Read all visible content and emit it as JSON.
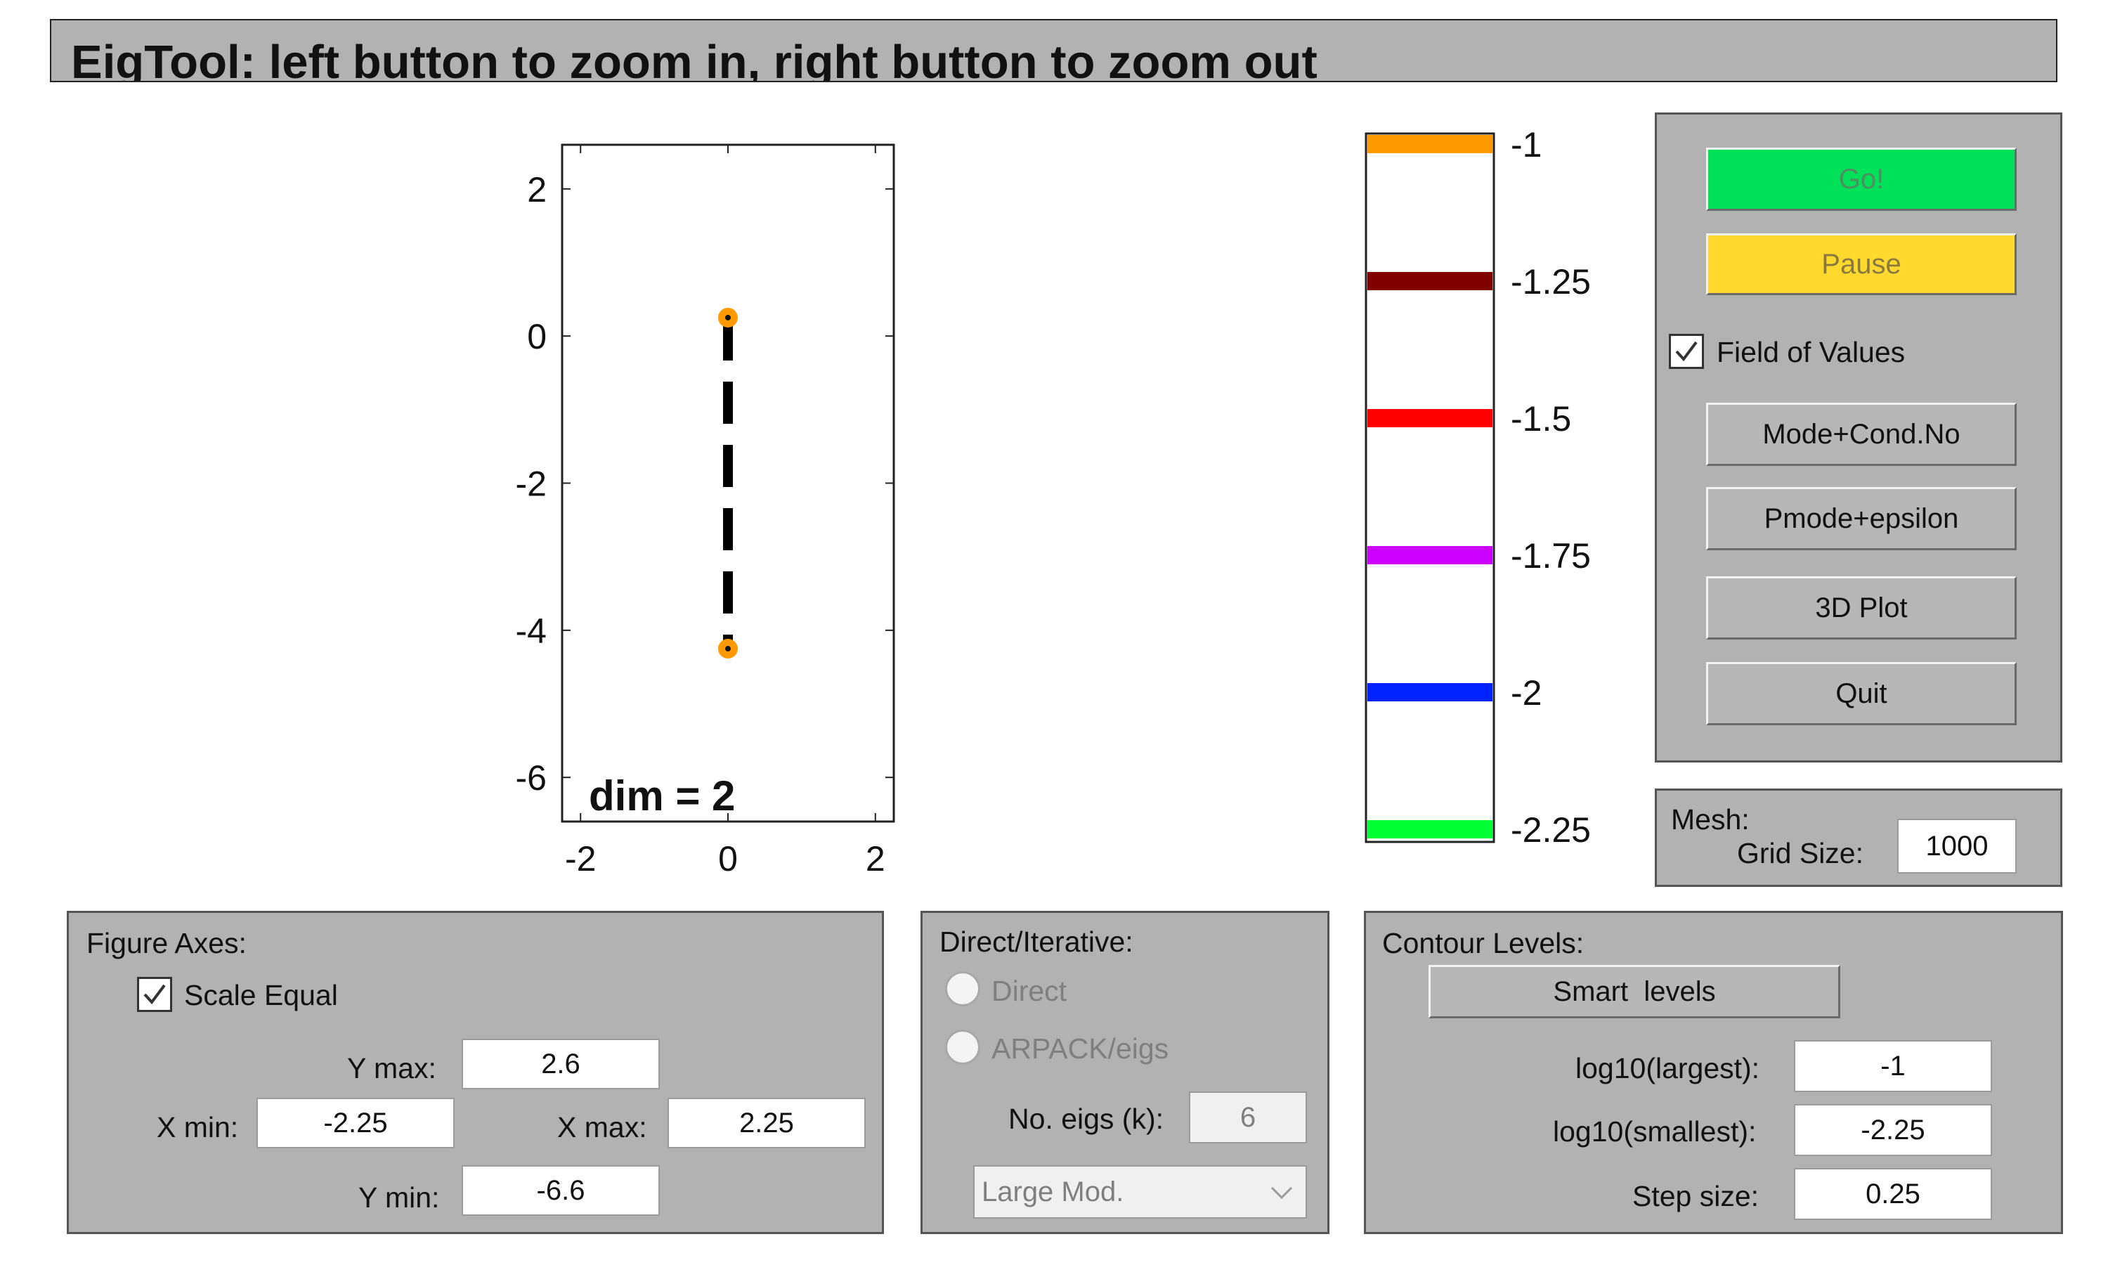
{
  "window": {
    "title": "EigTool: left button to zoom in, right button to zoom out"
  },
  "plot": {
    "x_ticks": [
      "-2",
      "0",
      "2"
    ],
    "y_ticks": [
      "2",
      "0",
      "-2",
      "-4",
      "-6"
    ],
    "dim_label": "dim = 2",
    "points_color": "#ff9900",
    "points": [
      {
        "x": 0,
        "y": 0.25
      },
      {
        "x": 0,
        "y": -4.25
      }
    ]
  },
  "colorbar": {
    "levels": [
      {
        "label": "-1",
        "color": "#ff9900"
      },
      {
        "label": "-1.25",
        "color": "#800000"
      },
      {
        "label": "-1.5",
        "color": "#ff0000"
      },
      {
        "label": "-1.75",
        "color": "#cc00ff"
      },
      {
        "label": "-2",
        "color": "#0022ff"
      },
      {
        "label": "-2.25",
        "color": "#00ff33"
      }
    ]
  },
  "controls": {
    "go": "Go!",
    "pause": "Pause",
    "field_of_values": "Field of Values",
    "field_of_values_checked": true,
    "mode_cond": "Mode+Cond.No",
    "pmode_eps": "Pmode+epsilon",
    "plot3d": "3D Plot",
    "quit": "Quit",
    "go_color": "#00e15a",
    "pause_color": "#ffd92e"
  },
  "mesh": {
    "title": "Mesh:",
    "grid_label": "Grid Size:",
    "grid_value": "1000"
  },
  "axes_panel": {
    "title": "Figure Axes:",
    "scale_equal": "Scale Equal",
    "scale_equal_checked": true,
    "ymax_label": "Y max:",
    "ymax": "2.6",
    "xmin_label": "X min:",
    "xmin": "-2.25",
    "xmax_label": "X max:",
    "xmax": "2.25",
    "ymin_label": "Y min:",
    "ymin": "-6.6"
  },
  "direct_panel": {
    "title": "Direct/Iterative:",
    "direct": "Direct",
    "arpack": "ARPACK/eigs",
    "neigs_label": "No. eigs (k):",
    "neigs": "6",
    "which": "Large Mod."
  },
  "contour_panel": {
    "title": "Contour Levels:",
    "smart": "Smart  levels",
    "largest_label": "log10(largest):",
    "largest": "-1",
    "smallest_label": "log10(smallest):",
    "smallest": "-2.25",
    "step_label": "Step size:",
    "step": "0.25"
  }
}
